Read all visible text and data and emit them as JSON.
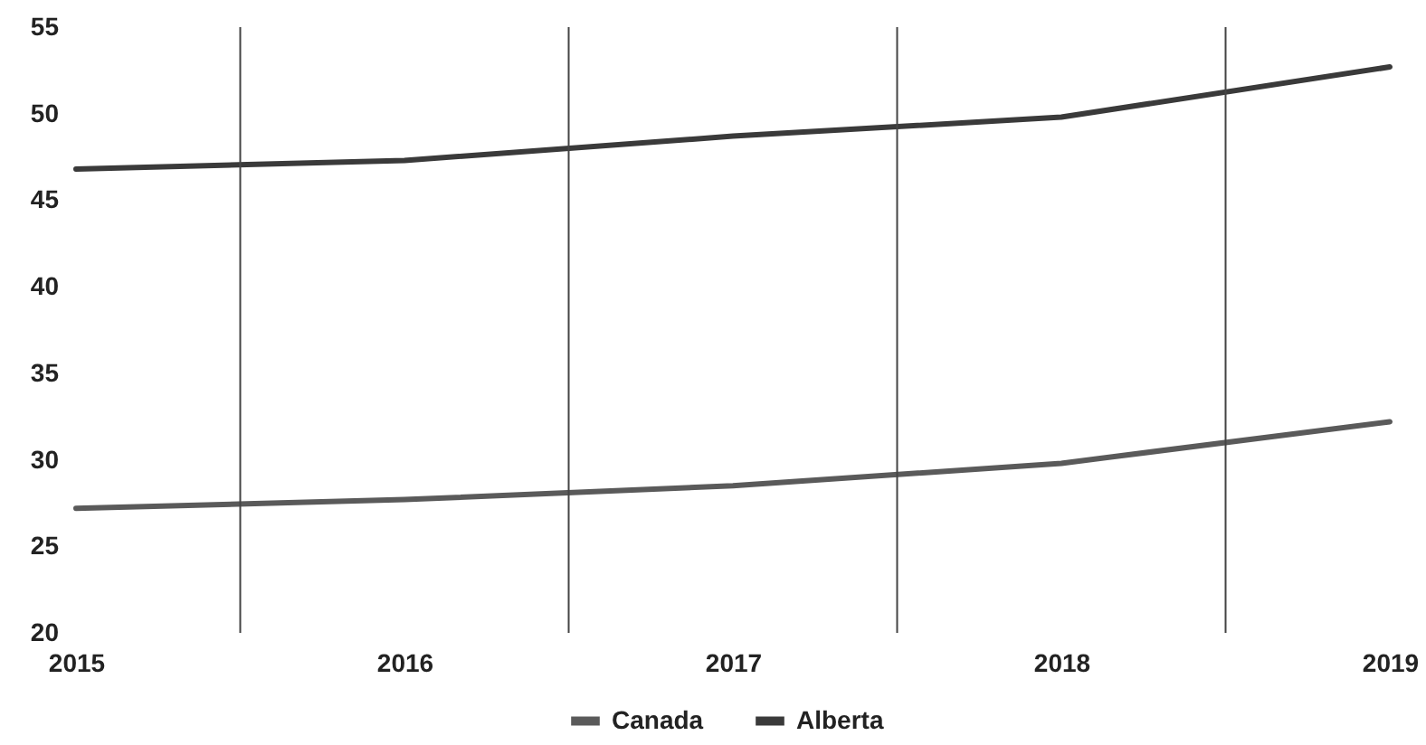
{
  "chart_data": {
    "type": "line",
    "x": [
      2015,
      2016,
      2017,
      2018,
      2019
    ],
    "xlim": [
      2015,
      2019
    ],
    "xticks": [
      2015,
      2016,
      2017,
      2018,
      2019
    ],
    "ylim": [
      20,
      55
    ],
    "yticks": [
      20,
      25,
      30,
      35,
      40,
      45,
      50,
      55
    ],
    "series": [
      {
        "name": "Canada",
        "color": "#5a5a5a",
        "values": [
          27.2,
          27.7,
          28.5,
          29.8,
          32.2
        ]
      },
      {
        "name": "Alberta",
        "color": "#3a3a3a",
        "values": [
          46.8,
          47.3,
          48.7,
          49.8,
          52.7
        ]
      }
    ],
    "ref_lines": [
      {
        "axis": "x",
        "value": 2015.5,
        "color": "#444444"
      },
      {
        "axis": "x",
        "value": 2016.5,
        "color": "#444444"
      },
      {
        "axis": "x",
        "value": 2017.5,
        "color": "#444444"
      },
      {
        "axis": "x",
        "value": 2018.5,
        "color": "#444444"
      }
    ],
    "legend": "bottom",
    "grid": false,
    "marker": "none",
    "line_style": "solid"
  }
}
